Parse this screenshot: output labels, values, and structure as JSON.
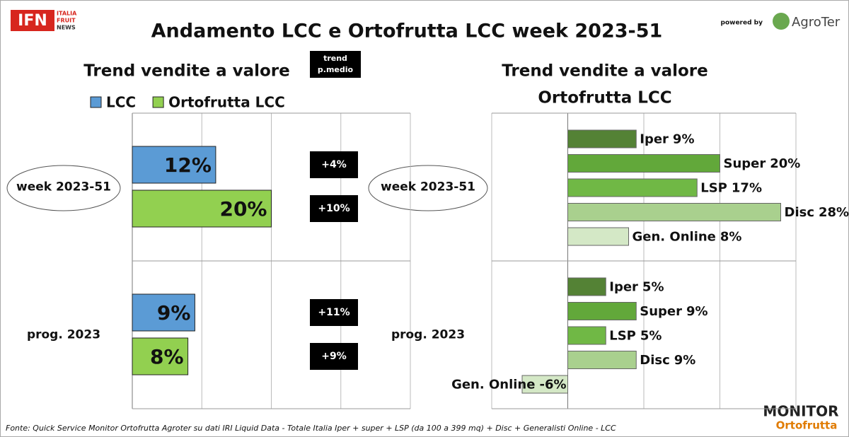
{
  "header": {
    "logo": "IFN",
    "logo_lines": [
      "ITALIA",
      "FRUIT",
      "NEWS"
    ],
    "title": "Andamento LCC e Ortofrutta LCC week 2023-51",
    "powered_by": "powered by",
    "partner": "AgroTer"
  },
  "footer": {
    "source": "Fonte: Quick Service Monitor Ortofrutta Agroter su dati IRI Liquid Data - Totale Italia Iper + super + LSP (da 100 a 399 mq) + Disc + Generalisti Online - LCC",
    "logo_top": "MONITOR",
    "logo_bottom": "Ortofrutta"
  },
  "chart_data": [
    {
      "type": "hbar",
      "title": "Trend vendite a valore",
      "categories": [
        "week 2023-51",
        "prog. 2023"
      ],
      "series": [
        {
          "name": "LCC",
          "color": "#5b9bd5",
          "values": [
            12,
            9
          ],
          "value_labels": [
            "12%",
            "9%"
          ],
          "trend_labels": [
            "+4%",
            "+11%"
          ]
        },
        {
          "name": "Ortofrutta LCC",
          "color": "#92d050",
          "values": [
            20,
            8
          ],
          "value_labels": [
            "20%",
            "8%"
          ],
          "trend_labels": [
            "+10%",
            "+9%"
          ]
        }
      ],
      "trend_title": [
        "trend",
        "p.medio"
      ],
      "xlim": [
        0,
        40
      ],
      "xgrid": [
        0,
        10,
        20,
        30,
        40
      ],
      "legend": "top"
    },
    {
      "type": "hbar",
      "title": [
        "Trend vendite a valore",
        "Ortofrutta LCC"
      ],
      "categories": [
        "week 2023-51",
        "prog. 2023"
      ],
      "series": [
        {
          "name": "Iper",
          "color": "#548235",
          "values": [
            9,
            5
          ],
          "value_labels": [
            "9%",
            "5%"
          ]
        },
        {
          "name": "Super",
          "color": "#62a83a",
          "values": [
            20,
            9
          ],
          "value_labels": [
            "20%",
            "9%"
          ]
        },
        {
          "name": "LSP",
          "color": "#70b845",
          "values": [
            17,
            5
          ],
          "value_labels": [
            "17%",
            "5%"
          ]
        },
        {
          "name": "Disc",
          "color": "#a9d08e",
          "values": [
            28,
            9
          ],
          "value_labels": [
            "28%",
            "9%"
          ]
        },
        {
          "name": "Gen. Online",
          "color": "#d4e8c6",
          "values": [
            8,
            -6
          ],
          "value_labels": [
            "8%",
            "-6%"
          ]
        }
      ],
      "xlim": [
        -10,
        30
      ],
      "xgrid": [
        -10,
        0,
        10,
        20,
        30
      ]
    }
  ]
}
